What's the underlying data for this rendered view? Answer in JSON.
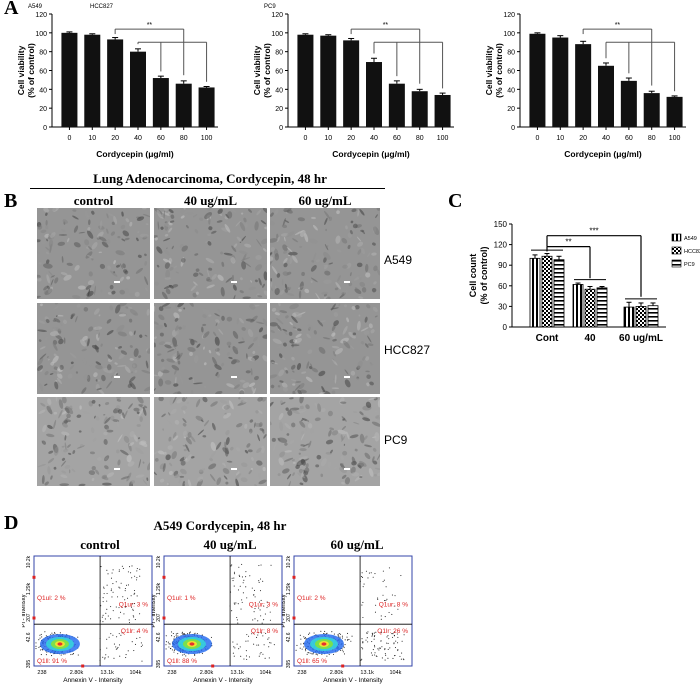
{
  "panel_letters": {
    "a": "A",
    "b": "B",
    "c": "C",
    "d": "D"
  },
  "panel_a": {
    "charts": [
      {
        "cell_line": "A549",
        "cell_line_2": "HCC827",
        "sig": "**"
      },
      {
        "cell_line": "PC9",
        "cell_line_2": "",
        "sig": "**"
      },
      {
        "cell_line": "",
        "cell_line_2": "",
        "sig": "**"
      }
    ],
    "ylabel_1": "Cell viability",
    "ylabel_2": "(% of control)",
    "xlabel": "Cordycepin (μg/ml)"
  },
  "panel_b": {
    "title": "Lung Adenocarcinoma, Cordycepin, 48 hr",
    "columns": [
      "control",
      "40 ug/mL",
      "60 ug/mL"
    ],
    "rows": [
      "A549",
      "HCC827",
      "PC9"
    ]
  },
  "panel_d": {
    "title": "A549 Cordycepin, 48 hr",
    "columns": [
      "control",
      "40 ug/mL",
      "60 ug/mL"
    ],
    "ylabel": "PI - Intensity",
    "xlabel": "Annexin V - Intensity",
    "y_ticks": [
      "395",
      "42.6",
      "207",
      "1.29k",
      "10.2k"
    ],
    "x_ticks": [
      "238",
      "2.80k",
      "13.1k",
      "104k"
    ],
    "plots": [
      {
        "q1ul": "Q1ul: 2 %",
        "q1ur": "Q1ur: 3 %",
        "q1lr": "Q1lr: 4 %",
        "q1ll": "Q1ll: 91 %"
      },
      {
        "q1ul": "Q1ul: 1 %",
        "q1ur": "Q1ur: 3 %",
        "q1lr": "Q1lr: 8 %",
        "q1ll": "Q1ll: 88 %"
      },
      {
        "q1ul": "Q1ul: 2 %",
        "q1ur": "Q1ur: 8 %",
        "q1lr": "Q1lr: 26 %",
        "q1ll": "Q1ll: 65 %"
      }
    ]
  },
  "colors": {
    "bar": "#111111",
    "dot": "#222222",
    "box": "#3344aa",
    "quad_label": "#dd2222"
  },
  "chart_data": [
    {
      "type": "bar",
      "title": "A549",
      "categories": [
        "0",
        "10",
        "20",
        "40",
        "60",
        "80",
        "100"
      ],
      "values": [
        100,
        98,
        93,
        80,
        52,
        46,
        42
      ],
      "errors": [
        1,
        1,
        2,
        3,
        2,
        3,
        1
      ],
      "ylim": [
        0,
        120
      ],
      "yticks": [
        0,
        20,
        40,
        60,
        80,
        100,
        120
      ],
      "xlabel": "Cordycepin (μg/ml)",
      "ylabel": "Cell viability (% of control)"
    },
    {
      "type": "bar",
      "title": "PC9",
      "categories": [
        "0",
        "10",
        "20",
        "40",
        "60",
        "80",
        "100"
      ],
      "values": [
        98,
        97,
        92,
        69,
        46,
        38,
        34
      ],
      "errors": [
        1,
        1,
        2,
        4,
        3,
        2,
        2
      ],
      "ylim": [
        0,
        120
      ],
      "yticks": [
        0,
        20,
        40,
        60,
        80,
        100,
        120
      ],
      "xlabel": "Cordycepin (μg/ml)",
      "ylabel": "Cell viability (% of control)"
    },
    {
      "type": "bar",
      "title": "",
      "categories": [
        "0",
        "10",
        "20",
        "40",
        "60",
        "80",
        "100"
      ],
      "values": [
        99,
        95,
        88,
        65,
        49,
        36,
        32
      ],
      "errors": [
        1,
        2,
        3,
        3,
        3,
        2,
        1
      ],
      "ylim": [
        0,
        120
      ],
      "yticks": [
        0,
        20,
        40,
        60,
        80,
        100,
        120
      ],
      "xlabel": "Cordycepin (μg/ml)",
      "ylabel": "Cell viability (% of control)"
    },
    {
      "type": "bar",
      "title": "",
      "categories": [
        "Cont",
        "40",
        "60 ug/mL"
      ],
      "series": [
        {
          "name": "A549",
          "values": [
            100,
            62,
            29
          ],
          "errors": [
            5,
            2,
            7
          ]
        },
        {
          "name": "HCC827",
          "values": [
            103,
            55,
            30
          ],
          "errors": [
            4,
            4,
            5
          ]
        },
        {
          "name": "PC9",
          "values": [
            98,
            57,
            31
          ],
          "errors": [
            5,
            2,
            4
          ]
        }
      ],
      "ylim": [
        0,
        150
      ],
      "yticks": [
        0,
        30,
        60,
        90,
        120,
        150
      ],
      "ylabel": "Cell count (% of control)",
      "sig": [
        "**",
        "***"
      ]
    }
  ]
}
